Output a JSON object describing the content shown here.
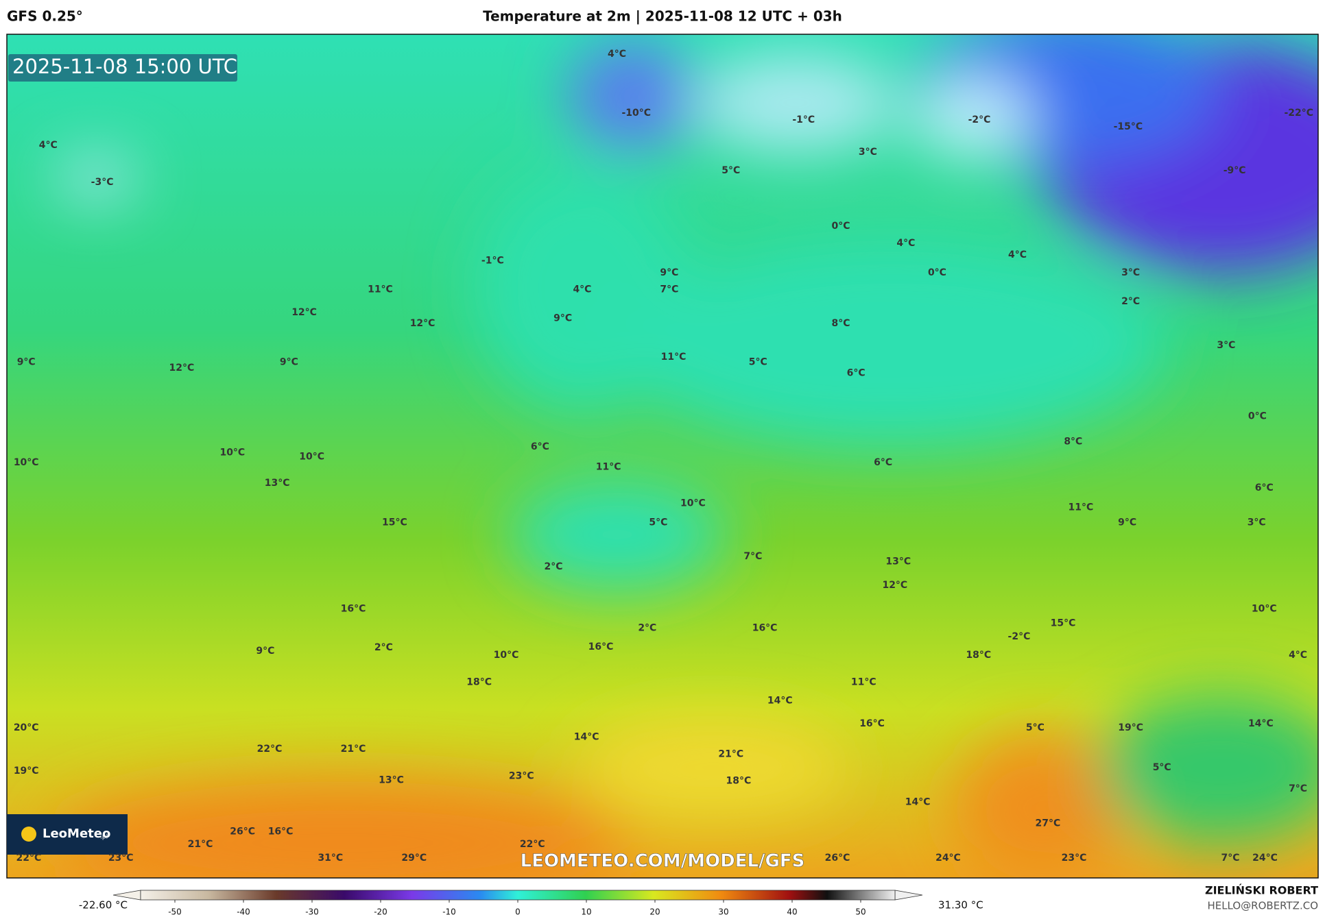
{
  "header": {
    "model": "GFS 0.25°",
    "title": "Temperature at 2m | 2025-11-08 12 UTC + 03h"
  },
  "timestamp": "2025-11-08 15:00 UTC",
  "watermark": "LEOMETEO.COM/MODEL/GFS",
  "logo": {
    "name": "LeoMeteo",
    "suffix": ".pl"
  },
  "temperature_labels": [
    "4°C",
    "-10°C",
    "-1°C",
    "-2°C",
    "-15°C",
    "-22°C",
    "4°C",
    "-3°C",
    "3°C",
    "5°C",
    "-9°C",
    "0°C",
    "4°C",
    "4°C",
    "-1°C",
    "0°C",
    "3°C",
    "9°C",
    "11°C",
    "4°C",
    "7°C",
    "2°C",
    "12°C",
    "9°C",
    "12°C",
    "8°C",
    "3°C",
    "9°C",
    "9°C",
    "11°C",
    "5°C",
    "12°C",
    "6°C",
    "0°C",
    "8°C",
    "6°C",
    "10°C",
    "10°C",
    "10°C",
    "6°C",
    "11°C",
    "13°C",
    "6°C",
    "10°C",
    "11°C",
    "15°C",
    "5°C",
    "9°C",
    "3°C",
    "7°C",
    "13°C",
    "2°C",
    "12°C",
    "16°C",
    "10°C",
    "15°C",
    "2°C",
    "16°C",
    "-2°C",
    "16°C",
    "9°C",
    "2°C",
    "10°C",
    "18°C",
    "4°C",
    "18°C",
    "11°C",
    "14°C",
    "16°C",
    "14°C",
    "20°C",
    "5°C",
    "19°C",
    "14°C",
    "22°C",
    "21°C",
    "21°C",
    "5°C",
    "19°C",
    "23°C",
    "13°C",
    "18°C",
    "7°C",
    "14°C",
    "27°C",
    "26°C",
    "16°C",
    "21°C",
    "22°C",
    "22°C",
    "23°C",
    "31°C",
    "29°C",
    "26°C",
    "24°C",
    "23°C",
    "7°C",
    "24°C"
  ],
  "colorbar": {
    "min_label": "-22.60 °C",
    "max_label": "31.30 °C",
    "lim": [
      -55,
      55
    ],
    "ticks": [
      -50,
      -40,
      -30,
      -20,
      -10,
      0,
      10,
      20,
      30,
      40,
      50
    ]
  },
  "author": {
    "name": "ZIELIŃSKI ROBERT",
    "email": "HELLO@ROBERTZ.CO"
  }
}
